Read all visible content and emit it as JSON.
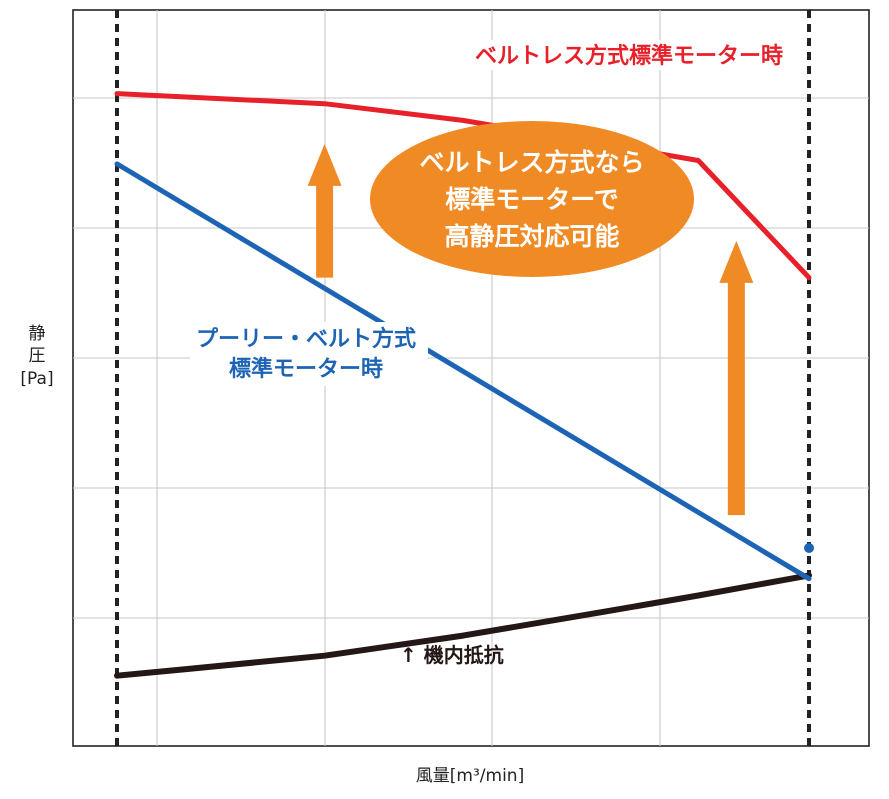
{
  "chart_data": {
    "type": "line",
    "x": [
      0.0,
      0.1,
      0.3,
      0.5,
      0.7,
      0.84,
      1.0
    ],
    "series": [
      {
        "name": "ベルトレス方式標準モーター時",
        "color": "#e8202a",
        "values": [
          0.975,
          0.97,
          0.96,
          0.935,
          0.9,
          0.875,
          0.7
        ]
      },
      {
        "name": "プーリー・ベルト方式\n標準モーター時",
        "color": "#1e64b4",
        "values": [
          0.87,
          null,
          null,
          null,
          null,
          null,
          0.25
        ]
      },
      {
        "name": "↑ 機内抵抗",
        "color": "#231815",
        "values": [
          0.105,
          0.115,
          0.135,
          0.165,
          0.2,
          0.225,
          0.255
        ]
      }
    ],
    "xlabel": "風量[m³/min]",
    "ylabel": "静圧\n[Pa]",
    "ylim": [
      0,
      1.1
    ],
    "grid": true,
    "vertical_dashed_markers": true,
    "arrows": [
      {
        "x": 0.3,
        "from": 0.7,
        "to": 0.9,
        "color": "#f08a24"
      },
      {
        "x": 0.895,
        "from": 0.345,
        "to": 0.755,
        "color": "#f08a24"
      }
    ],
    "callout": {
      "lines": [
        "ベルトレス方式なら",
        "標準モーターで",
        "高静圧対応可能"
      ],
      "color": "#f08a24",
      "text_color": "#ffffff"
    }
  },
  "labels": {
    "red": "ベルトレス方式標準モーター時",
    "blue_line1": "プーリー・ベルト方式",
    "blue_line2": "標準モーター時",
    "black": "↑ 機内抵抗",
    "callout1": "ベルトレス方式なら",
    "callout2": "標準モーターで",
    "callout3": "高静圧対応可能",
    "ylabel1": "静",
    "ylabel2": "圧",
    "ylabel3": "[Pa]",
    "xlabel": "風量[m³/min]"
  }
}
